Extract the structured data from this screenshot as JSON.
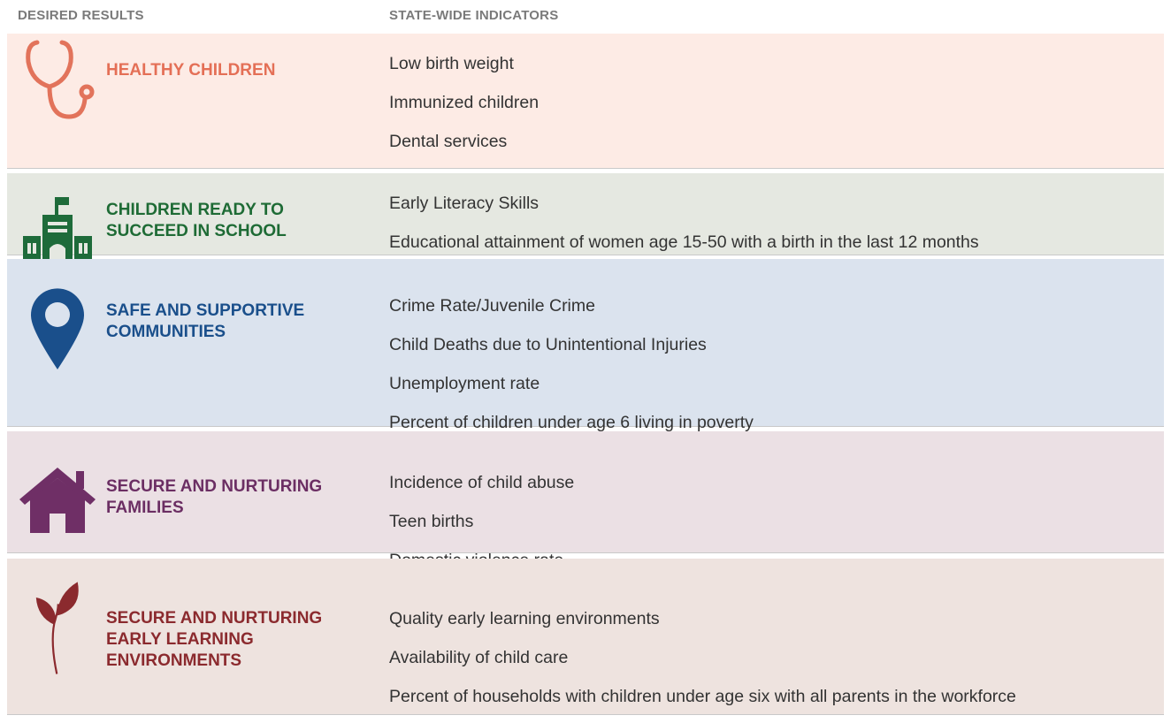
{
  "header": {
    "columns": [
      "DESIRED RESULTS",
      "STATE-WIDE INDICATORS"
    ]
  },
  "rows": [
    {
      "title": [
        "HEALTHY CHILDREN"
      ],
      "indicators": [
        "Low birth weight",
        "Immunized children",
        "Dental services"
      ]
    },
    {
      "title": [
        "CHILDREN READY TO",
        "SUCCEED IN SCHOOL"
      ],
      "indicators": [
        "Early Literacy Skills",
        "Educational attainment of women age 15-50 with a birth in the last 12 months"
      ]
    },
    {
      "title": [
        "SAFE AND SUPPORTIVE",
        "COMMUNITIES"
      ],
      "indicators": [
        "Crime Rate/Juvenile Crime",
        "Child Deaths due to Unintentional Injuries",
        "Unemployment rate",
        "Percent of children under age 6 living in poverty"
      ]
    },
    {
      "title": [
        "SECURE AND NURTURING",
        "FAMILIES"
      ],
      "indicators": [
        "Incidence of child abuse",
        "Teen births",
        "Domestic violence rate"
      ]
    },
    {
      "title": [
        "SECURE AND NURTURING",
        "EARLY LEARNING",
        "ENVIRONMENTS"
      ],
      "indicators": [
        "Quality early learning environments",
        "Availability of child care",
        "Percent of households with children under age six with all parents in the workforce"
      ]
    }
  ]
}
